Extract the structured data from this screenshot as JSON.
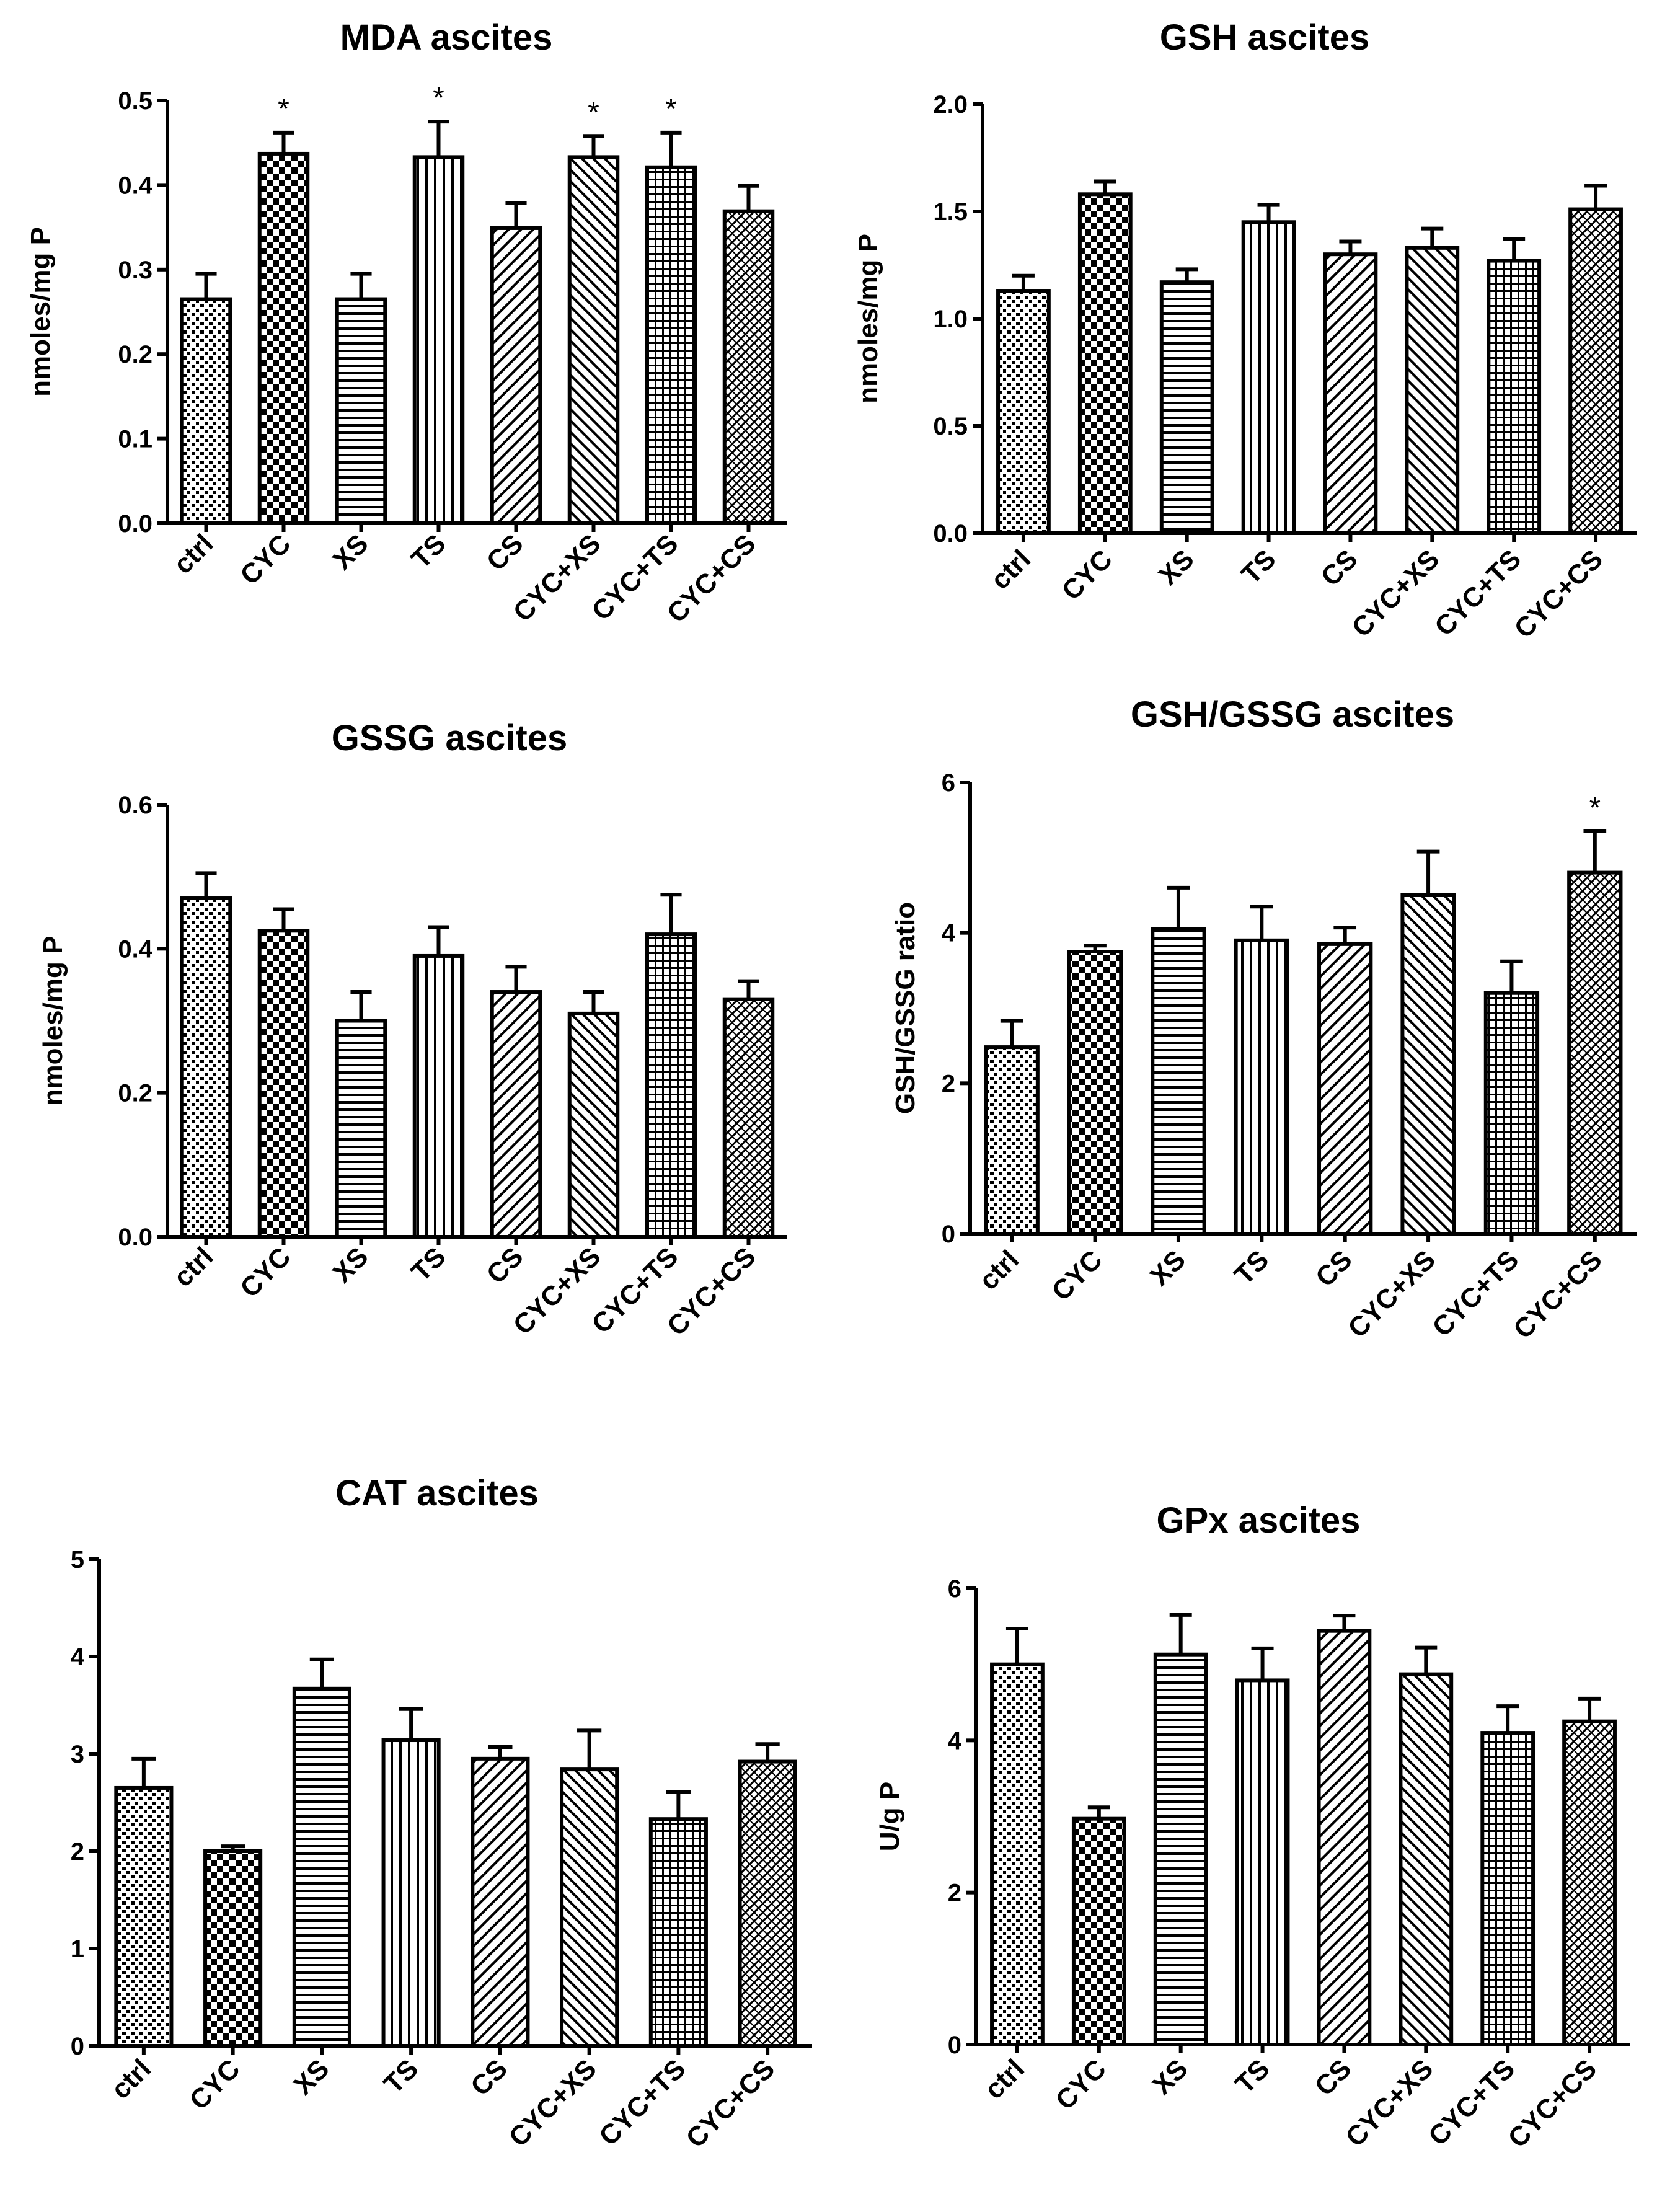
{
  "figure": {
    "colors": {
      "ink": "#000000",
      "background": "#ffffff"
    },
    "patterns": [
      "dots",
      "checker",
      "hlines",
      "vlines",
      "diag-right",
      "diag-left",
      "grid",
      "diag-right-dense"
    ]
  },
  "chart_data": [
    {
      "id": "mda",
      "type": "bar",
      "title": "MDA ascites",
      "ylabel": "nmoles/mg P",
      "categories": [
        "ctrl",
        "CYC",
        "XS",
        "TS",
        "CS",
        "CYC+XS",
        "CYC+TS",
        "CYC+CS"
      ],
      "values": [
        0.265,
        0.437,
        0.265,
        0.433,
        0.349,
        0.433,
        0.421,
        0.369
      ],
      "errors": [
        0.03,
        0.025,
        0.03,
        0.042,
        0.03,
        0.025,
        0.041,
        0.03
      ],
      "significant": [
        false,
        true,
        false,
        true,
        false,
        true,
        true,
        false
      ],
      "significance_label": "*",
      "ylim": [
        0,
        0.5
      ],
      "yticks": [
        "0.0",
        "0.1",
        "0.2",
        "0.3",
        "0.4",
        "0.5"
      ]
    },
    {
      "id": "gsh",
      "type": "bar",
      "title": "GSH ascites",
      "ylabel": "nmoles/mg P",
      "categories": [
        "ctrl",
        "CYC",
        "XS",
        "TS",
        "CS",
        "CYC+XS",
        "CYC+TS",
        "CYC+CS"
      ],
      "values": [
        1.13,
        1.58,
        1.17,
        1.45,
        1.3,
        1.33,
        1.27,
        1.51
      ],
      "errors": [
        0.07,
        0.06,
        0.06,
        0.08,
        0.06,
        0.09,
        0.1,
        0.11
      ],
      "significant": [
        false,
        false,
        false,
        false,
        false,
        false,
        false,
        false
      ],
      "significance_label": "*",
      "ylim": [
        0,
        2.0
      ],
      "yticks": [
        "0.0",
        "0.5",
        "1.0",
        "1.5",
        "2.0"
      ]
    },
    {
      "id": "gssg",
      "type": "bar",
      "title": "GSSG ascites",
      "ylabel": "nmoles/mg P",
      "categories": [
        "ctrl",
        "CYC",
        "XS",
        "TS",
        "CS",
        "CYC+XS",
        "CYC+TS",
        "CYC+CS"
      ],
      "values": [
        0.47,
        0.425,
        0.3,
        0.39,
        0.34,
        0.31,
        0.42,
        0.33
      ],
      "errors": [
        0.035,
        0.03,
        0.04,
        0.04,
        0.035,
        0.03,
        0.055,
        0.025
      ],
      "significant": [
        false,
        false,
        false,
        false,
        false,
        false,
        false,
        false
      ],
      "significance_label": "*",
      "ylim": [
        0,
        0.6
      ],
      "yticks": [
        "0.0",
        "0.2",
        "0.4",
        "0.6"
      ]
    },
    {
      "id": "ratio",
      "type": "bar",
      "title": "GSH/GSSG ascites",
      "ylabel": "GSH/GSSG ratio",
      "categories": [
        "ctrl",
        "CYC",
        "XS",
        "TS",
        "CS",
        "CYC+XS",
        "CYC+TS",
        "CYC+CS"
      ],
      "values": [
        2.48,
        3.75,
        4.05,
        3.9,
        3.85,
        4.5,
        3.2,
        4.8
      ],
      "errors": [
        0.35,
        0.08,
        0.55,
        0.45,
        0.22,
        0.58,
        0.42,
        0.55
      ],
      "significant": [
        false,
        false,
        false,
        false,
        false,
        false,
        false,
        true
      ],
      "significance_label": "*",
      "ylim": [
        0,
        6
      ],
      "yticks": [
        "0",
        "2",
        "4",
        "6"
      ]
    },
    {
      "id": "cat",
      "type": "bar",
      "title": "CAT ascites",
      "ylabel": "",
      "categories": [
        "ctrl",
        "CYC",
        "XS",
        "TS",
        "CS",
        "CYC+XS",
        "CYC+TS",
        "CYC+CS"
      ],
      "values": [
        2.65,
        2.0,
        3.67,
        3.14,
        2.95,
        2.84,
        2.33,
        2.92
      ],
      "errors": [
        0.3,
        0.05,
        0.3,
        0.32,
        0.12,
        0.4,
        0.28,
        0.18
      ],
      "significant": [
        false,
        false,
        false,
        false,
        false,
        false,
        false,
        false
      ],
      "significance_label": "*",
      "ylim": [
        0,
        5
      ],
      "yticks": [
        "0",
        "1",
        "2",
        "3",
        "4",
        "5"
      ]
    },
    {
      "id": "gpx",
      "type": "bar",
      "title": "GPx ascites",
      "ylabel": "U/g P",
      "categories": [
        "ctrl",
        "CYC",
        "XS",
        "TS",
        "CS",
        "CYC+XS",
        "CYC+TS",
        "CYC+CS"
      ],
      "values": [
        5.0,
        2.97,
        5.13,
        4.79,
        5.44,
        4.87,
        4.1,
        4.25
      ],
      "errors": [
        0.47,
        0.15,
        0.52,
        0.42,
        0.2,
        0.35,
        0.35,
        0.3
      ],
      "significant": [
        false,
        false,
        false,
        false,
        false,
        false,
        false,
        false
      ],
      "significance_label": "*",
      "ylim": [
        0,
        6
      ],
      "yticks": [
        "0",
        "2",
        "4",
        "6"
      ]
    }
  ]
}
